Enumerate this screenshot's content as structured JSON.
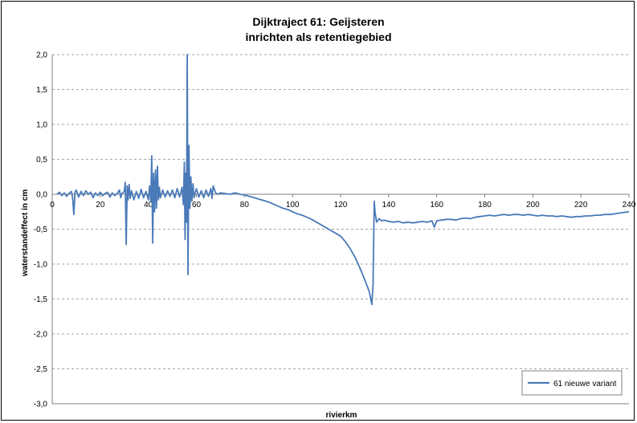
{
  "chart_data": {
    "type": "line",
    "title_line1": "Dijktraject  61: Geijsteren",
    "title_line2": "inrichten als retentiegebied",
    "xlabel": "rivierkm",
    "ylabel": "waterstandeffect in cm",
    "xlim": [
      0,
      240
    ],
    "ylim": [
      -3.0,
      2.0
    ],
    "x_ticks": [
      0,
      20,
      40,
      60,
      80,
      100,
      120,
      140,
      160,
      180,
      200,
      220,
      240
    ],
    "y_ticks": [
      2.0,
      1.5,
      1.0,
      0.5,
      0.0,
      -0.5,
      -1.0,
      -1.5,
      -2.0,
      -2.5,
      -3.0
    ],
    "x_tick_labels": [
      "0",
      "20",
      "40",
      "60",
      "80",
      "100",
      "120",
      "140",
      "160",
      "180",
      "200",
      "220",
      "240"
    ],
    "y_tick_labels": [
      "2,0",
      "1,5",
      "1,0",
      "0,5",
      "0,0",
      "-0,5",
      "-1,0",
      "-1,5",
      "-2,0",
      "-2,5",
      "-3,0"
    ],
    "grid": "horizontal dashed",
    "legend_position": "bottom-right",
    "series": [
      {
        "name": "61 nieuwe variant",
        "color": "#4a7ab8",
        "points": [
          [
            2,
            0.0
          ],
          [
            3,
            0.03
          ],
          [
            4,
            -0.02
          ],
          [
            5,
            0.02
          ],
          [
            6,
            -0.03
          ],
          [
            7,
            0.01
          ],
          [
            8,
            0.04
          ],
          [
            8.5,
            -0.05
          ],
          [
            9,
            -0.29
          ],
          [
            9.5,
            0.03
          ],
          [
            10,
            0.06
          ],
          [
            11,
            -0.04
          ],
          [
            12,
            0.04
          ],
          [
            13,
            -0.02
          ],
          [
            14,
            0.05
          ],
          [
            15,
            0.0
          ],
          [
            16,
            0.03
          ],
          [
            17,
            -0.05
          ],
          [
            18,
            0.02
          ],
          [
            19,
            -0.02
          ],
          [
            20,
            0.03
          ],
          [
            21,
            -0.02
          ],
          [
            22,
            0.01
          ],
          [
            23,
            0.03
          ],
          [
            24,
            -0.04
          ],
          [
            25,
            0.02
          ],
          [
            26,
            -0.02
          ],
          [
            27,
            0.01
          ],
          [
            28,
            0.06
          ],
          [
            28.5,
            -0.05
          ],
          [
            29,
            0.01
          ],
          [
            30,
            0.04
          ],
          [
            30.4,
            0.17
          ],
          [
            30.8,
            -0.72
          ],
          [
            31.2,
            0.12
          ],
          [
            31.6,
            -0.08
          ],
          [
            32,
            0.14
          ],
          [
            32.5,
            -0.06
          ],
          [
            33,
            0.05
          ],
          [
            34,
            -0.08
          ],
          [
            35,
            0.04
          ],
          [
            36,
            -0.06
          ],
          [
            37,
            0.07
          ],
          [
            38,
            -0.05
          ],
          [
            39,
            0.04
          ],
          [
            40,
            -0.08
          ],
          [
            40.5,
            0.12
          ],
          [
            41,
            -0.1
          ],
          [
            41.4,
            0.55
          ],
          [
            41.8,
            -0.7
          ],
          [
            42.2,
            0.3
          ],
          [
            42.6,
            -0.25
          ],
          [
            43,
            0.35
          ],
          [
            43.4,
            -0.2
          ],
          [
            43.8,
            0.4
          ],
          [
            44.2,
            -0.08
          ],
          [
            44.6,
            0.1
          ],
          [
            45,
            -0.05
          ],
          [
            46,
            0.06
          ],
          [
            47,
            -0.04
          ],
          [
            48,
            0.05
          ],
          [
            49,
            -0.03
          ],
          [
            50,
            0.06
          ],
          [
            51,
            -0.05
          ],
          [
            52,
            0.08
          ],
          [
            53,
            -0.04
          ],
          [
            54,
            0.1
          ],
          [
            54.6,
            -0.15
          ],
          [
            55.0,
            0.46
          ],
          [
            55.3,
            -0.65
          ],
          [
            55.6,
            0.3
          ],
          [
            55.9,
            -0.4
          ],
          [
            56.2,
            2.0
          ],
          [
            56.5,
            -1.15
          ],
          [
            56.9,
            0.7
          ],
          [
            57.3,
            -0.2
          ],
          [
            57.7,
            0.25
          ],
          [
            58.1,
            -0.1
          ],
          [
            58.6,
            0.15
          ],
          [
            59,
            -0.05
          ],
          [
            60,
            0.08
          ],
          [
            61,
            -0.04
          ],
          [
            62,
            0.05
          ],
          [
            63,
            -0.05
          ],
          [
            64,
            0.06
          ],
          [
            65,
            -0.03
          ],
          [
            66,
            0.08
          ],
          [
            66.5,
            -0.06
          ],
          [
            67,
            0.12
          ],
          [
            68,
            0.02
          ],
          [
            69,
            0.0
          ],
          [
            70,
            0.02
          ],
          [
            72,
            0.01
          ],
          [
            74,
            0.0
          ],
          [
            76,
            0.02
          ],
          [
            78,
            0.0
          ],
          [
            80,
            -0.01
          ],
          [
            82,
            -0.03
          ],
          [
            84,
            -0.05
          ],
          [
            86,
            -0.07
          ],
          [
            88,
            -0.09
          ],
          [
            90,
            -0.11
          ],
          [
            92,
            -0.14
          ],
          [
            94,
            -0.17
          ],
          [
            96,
            -0.2
          ],
          [
            98,
            -0.22
          ],
          [
            100,
            -0.25
          ],
          [
            102,
            -0.28
          ],
          [
            104,
            -0.3
          ],
          [
            106,
            -0.33
          ],
          [
            108,
            -0.36
          ],
          [
            110,
            -0.4
          ],
          [
            112,
            -0.44
          ],
          [
            114,
            -0.48
          ],
          [
            116,
            -0.52
          ],
          [
            118,
            -0.56
          ],
          [
            120,
            -0.6
          ],
          [
            122,
            -0.68
          ],
          [
            124,
            -0.78
          ],
          [
            126,
            -0.9
          ],
          [
            128,
            -1.05
          ],
          [
            130,
            -1.22
          ],
          [
            132,
            -1.4
          ],
          [
            133,
            -1.58
          ],
          [
            133.5,
            -1.3
          ],
          [
            134,
            -0.1
          ],
          [
            134.3,
            -0.25
          ],
          [
            135,
            -0.4
          ],
          [
            136,
            -0.35
          ],
          [
            137,
            -0.38
          ],
          [
            138,
            -0.37
          ],
          [
            140,
            -0.39
          ],
          [
            142,
            -0.4
          ],
          [
            144,
            -0.39
          ],
          [
            146,
            -0.41
          ],
          [
            148,
            -0.4
          ],
          [
            150,
            -0.41
          ],
          [
            152,
            -0.4
          ],
          [
            154,
            -0.39
          ],
          [
            156,
            -0.4
          ],
          [
            158,
            -0.38
          ],
          [
            159,
            -0.47
          ],
          [
            160,
            -0.38
          ],
          [
            162,
            -0.37
          ],
          [
            164,
            -0.36
          ],
          [
            166,
            -0.36
          ],
          [
            168,
            -0.37
          ],
          [
            170,
            -0.35
          ],
          [
            172,
            -0.34
          ],
          [
            174,
            -0.35
          ],
          [
            176,
            -0.33
          ],
          [
            178,
            -0.32
          ],
          [
            180,
            -0.31
          ],
          [
            182,
            -0.3
          ],
          [
            184,
            -0.31
          ],
          [
            186,
            -0.3
          ],
          [
            188,
            -0.29
          ],
          [
            190,
            -0.3
          ],
          [
            192,
            -0.29
          ],
          [
            194,
            -0.29
          ],
          [
            196,
            -0.3
          ],
          [
            198,
            -0.29
          ],
          [
            200,
            -0.3
          ],
          [
            202,
            -0.31
          ],
          [
            204,
            -0.3
          ],
          [
            206,
            -0.31
          ],
          [
            208,
            -0.31
          ],
          [
            210,
            -0.32
          ],
          [
            212,
            -0.31
          ],
          [
            214,
            -0.32
          ],
          [
            216,
            -0.33
          ],
          [
            218,
            -0.32
          ],
          [
            220,
            -0.32
          ],
          [
            222,
            -0.31
          ],
          [
            224,
            -0.31
          ],
          [
            226,
            -0.3
          ],
          [
            228,
            -0.3
          ],
          [
            230,
            -0.29
          ],
          [
            232,
            -0.29
          ],
          [
            234,
            -0.28
          ],
          [
            236,
            -0.27
          ],
          [
            238,
            -0.26
          ],
          [
            240,
            -0.25
          ]
        ]
      }
    ]
  }
}
